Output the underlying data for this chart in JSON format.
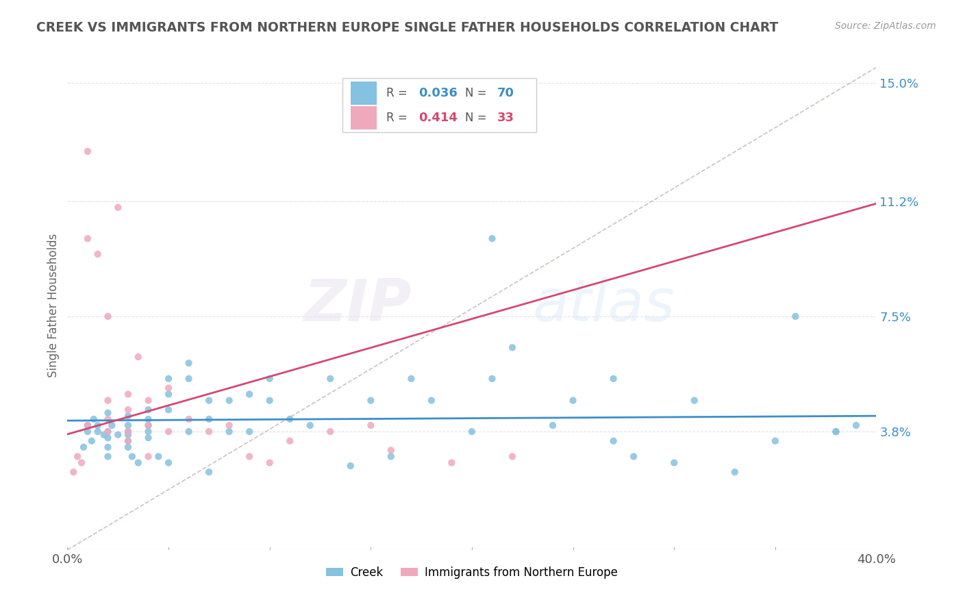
{
  "title": "CREEK VS IMMIGRANTS FROM NORTHERN EUROPE SINGLE FATHER HOUSEHOLDS CORRELATION CHART",
  "source_text": "Source: ZipAtlas.com",
  "ylabel": "Single Father Households",
  "watermark_zip": "ZIP",
  "watermark_atlas": "atlas",
  "xmin": 0.0,
  "xmax": 0.04,
  "ymin": 0.0,
  "ymax": 0.155,
  "yticks": [
    0.038,
    0.075,
    0.112,
    0.15
  ],
  "ytick_labels": [
    "3.8%",
    "7.5%",
    "11.2%",
    "15.0%"
  ],
  "xtick_labels": [
    "0.0%",
    "40.0%"
  ],
  "color_blue": "#85c1e0",
  "color_pink": "#f0a8bc",
  "color_blue_text": "#3d8ec9",
  "color_pink_text": "#d44870",
  "color_title": "#555555",
  "color_source": "#999999",
  "color_diagonal": "#d0c0c0",
  "color_gridline": "#e0e0e0",
  "R_blue": 0.036,
  "N_blue": 70,
  "R_pink": 0.414,
  "N_pink": 33,
  "blue_x": [
    0.0008,
    0.001,
    0.001,
    0.0012,
    0.0013,
    0.0015,
    0.0015,
    0.0018,
    0.002,
    0.002,
    0.002,
    0.002,
    0.002,
    0.0022,
    0.0025,
    0.003,
    0.003,
    0.003,
    0.003,
    0.003,
    0.003,
    0.0032,
    0.0035,
    0.004,
    0.004,
    0.004,
    0.004,
    0.004,
    0.0045,
    0.005,
    0.005,
    0.005,
    0.005,
    0.006,
    0.006,
    0.006,
    0.007,
    0.007,
    0.007,
    0.008,
    0.008,
    0.009,
    0.009,
    0.01,
    0.01,
    0.011,
    0.012,
    0.013,
    0.014,
    0.015,
    0.016,
    0.017,
    0.018,
    0.02,
    0.021,
    0.022,
    0.024,
    0.025,
    0.027,
    0.028,
    0.03,
    0.031,
    0.033,
    0.036,
    0.038,
    0.039,
    0.021,
    0.027,
    0.035,
    0.038
  ],
  "blue_y": [
    0.033,
    0.038,
    0.04,
    0.035,
    0.042,
    0.038,
    0.04,
    0.037,
    0.033,
    0.036,
    0.044,
    0.038,
    0.03,
    0.04,
    0.037,
    0.038,
    0.035,
    0.04,
    0.037,
    0.043,
    0.033,
    0.03,
    0.028,
    0.038,
    0.036,
    0.04,
    0.045,
    0.042,
    0.03,
    0.05,
    0.055,
    0.045,
    0.028,
    0.06,
    0.038,
    0.055,
    0.048,
    0.042,
    0.025,
    0.048,
    0.038,
    0.05,
    0.038,
    0.048,
    0.055,
    0.042,
    0.04,
    0.055,
    0.027,
    0.048,
    0.03,
    0.055,
    0.048,
    0.038,
    0.055,
    0.065,
    0.04,
    0.048,
    0.055,
    0.03,
    0.028,
    0.048,
    0.025,
    0.075,
    0.038,
    0.04,
    0.1,
    0.035,
    0.035,
    0.038
  ],
  "pink_x": [
    0.0003,
    0.0005,
    0.0007,
    0.001,
    0.001,
    0.001,
    0.0015,
    0.002,
    0.002,
    0.002,
    0.002,
    0.0025,
    0.003,
    0.003,
    0.003,
    0.003,
    0.0035,
    0.004,
    0.004,
    0.004,
    0.005,
    0.005,
    0.006,
    0.007,
    0.008,
    0.009,
    0.01,
    0.011,
    0.013,
    0.015,
    0.016,
    0.019,
    0.022
  ],
  "pink_y": [
    0.025,
    0.03,
    0.028,
    0.128,
    0.1,
    0.04,
    0.095,
    0.075,
    0.042,
    0.038,
    0.048,
    0.11,
    0.05,
    0.045,
    0.038,
    0.035,
    0.062,
    0.048,
    0.04,
    0.03,
    0.052,
    0.038,
    0.042,
    0.038,
    0.04,
    0.03,
    0.028,
    0.035,
    0.038,
    0.04,
    0.032,
    0.028,
    0.03
  ]
}
